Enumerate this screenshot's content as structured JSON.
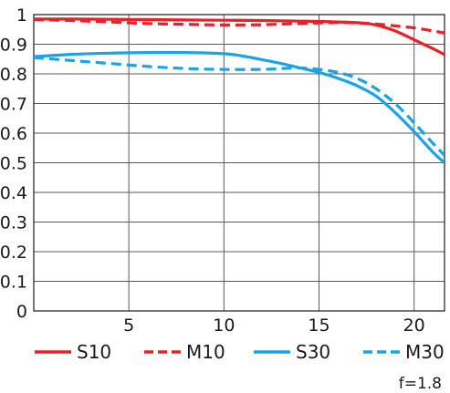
{
  "chart_data": {
    "type": "line",
    "title": "",
    "xlabel": "",
    "ylabel": "",
    "xlim": [
      0,
      21.6
    ],
    "ylim": [
      0,
      1
    ],
    "grid": true,
    "x_ticks": [
      "5",
      "10",
      "15",
      "20"
    ],
    "y_ticks": [
      "0",
      "0.1",
      "0.2",
      "0.3",
      "0.4",
      "0.5",
      "0.6",
      "0.7",
      "0.8",
      "0.9",
      "1"
    ],
    "legend_position": "bottom",
    "annotation": "f=1.8",
    "series": [
      {
        "name": "S10",
        "color": "#e8202a",
        "dash": "solid",
        "x": [
          0,
          2,
          4,
          6,
          8,
          10,
          12,
          14,
          15,
          16,
          17,
          18,
          19,
          20,
          21,
          21.6
        ],
        "values": [
          0.985,
          0.985,
          0.984,
          0.983,
          0.982,
          0.981,
          0.98,
          0.978,
          0.977,
          0.975,
          0.973,
          0.965,
          0.945,
          0.915,
          0.885,
          0.865
        ]
      },
      {
        "name": "M10",
        "color": "#e8202a",
        "dash": "dashed",
        "x": [
          0,
          2,
          4,
          6,
          8,
          10,
          12,
          14,
          15,
          16,
          17,
          18,
          19,
          20,
          21,
          21.6
        ],
        "values": [
          0.983,
          0.98,
          0.975,
          0.97,
          0.967,
          0.965,
          0.966,
          0.97,
          0.972,
          0.973,
          0.972,
          0.968,
          0.962,
          0.955,
          0.945,
          0.938
        ]
      },
      {
        "name": "S30",
        "color": "#1aa3e8",
        "dash": "solid",
        "x": [
          0,
          2,
          4,
          6,
          8,
          10,
          11,
          12,
          13,
          14,
          15,
          16,
          17,
          18,
          19,
          20,
          21,
          21.6
        ],
        "values": [
          0.858,
          0.866,
          0.87,
          0.872,
          0.872,
          0.868,
          0.86,
          0.848,
          0.835,
          0.82,
          0.805,
          0.785,
          0.76,
          0.725,
          0.67,
          0.605,
          0.535,
          0.5
        ]
      },
      {
        "name": "M30",
        "color": "#1aa3e8",
        "dash": "dashed",
        "x": [
          0,
          2,
          4,
          6,
          8,
          10,
          12,
          13,
          14,
          15,
          16,
          17,
          18,
          19,
          20,
          21,
          21.6
        ],
        "values": [
          0.855,
          0.845,
          0.835,
          0.825,
          0.818,
          0.815,
          0.815,
          0.818,
          0.82,
          0.815,
          0.805,
          0.785,
          0.75,
          0.7,
          0.635,
          0.565,
          0.525
        ]
      }
    ]
  }
}
